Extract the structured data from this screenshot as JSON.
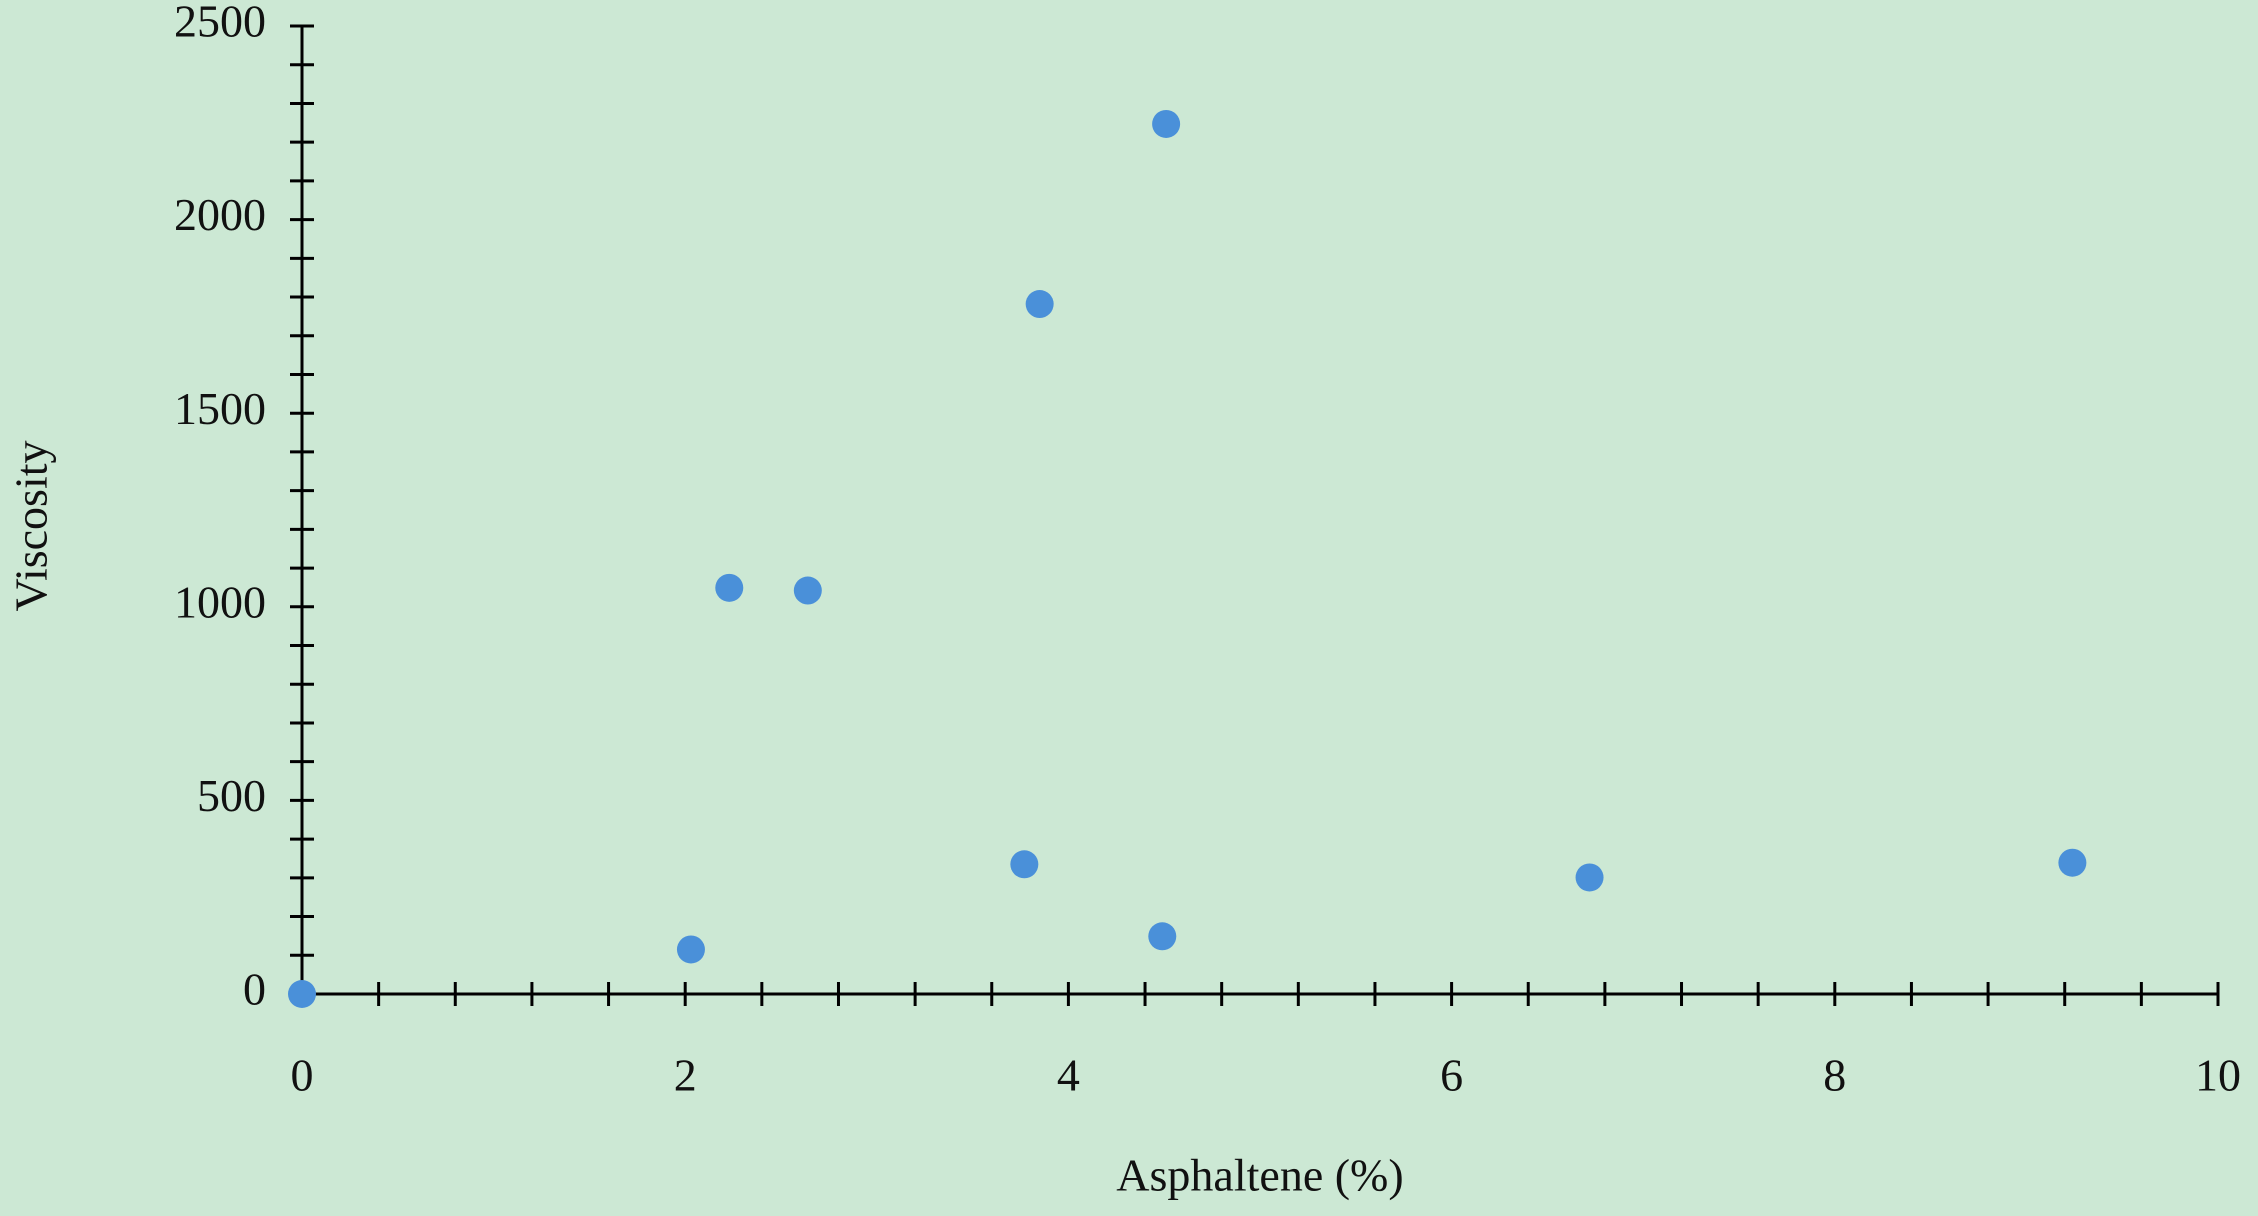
{
  "chart_data": {
    "type": "scatter",
    "x_label": "Asphaltene (%)",
    "y_label": "Viscosity",
    "series": [
      {
        "name": "Viscosity",
        "color": "#4a90d9",
        "x": [
          0,
          2.03,
          2.23,
          2.64,
          3.77,
          3.85,
          4.49,
          4.51,
          6.72,
          9.24
        ],
        "values": [
          0,
          115,
          1049,
          1042,
          335,
          1782,
          149,
          2247,
          301,
          339
        ]
      }
    ],
    "xlim": [
      0,
      10
    ],
    "xticks": [
      0,
      2,
      4,
      6,
      8,
      10
    ],
    "xminorticks": [
      0.4,
      0.8,
      1.2,
      1.6,
      2.4,
      2.8,
      3.2,
      3.6,
      4.4,
      4.8,
      5.2,
      5.6,
      6.4,
      6.8,
      7.2,
      7.6,
      8.4,
      8.8,
      9.2,
      9.6
    ],
    "ylim": [
      0,
      2500
    ],
    "yticks": [
      0,
      500,
      1000,
      1500,
      2000,
      2500
    ],
    "yminorticks": [
      100,
      200,
      300,
      400,
      600,
      700,
      800,
      900,
      1100,
      1200,
      1300,
      1400,
      1600,
      1700,
      1800,
      1900,
      2100,
      2200,
      2300,
      2400
    ],
    "grid": false
  }
}
